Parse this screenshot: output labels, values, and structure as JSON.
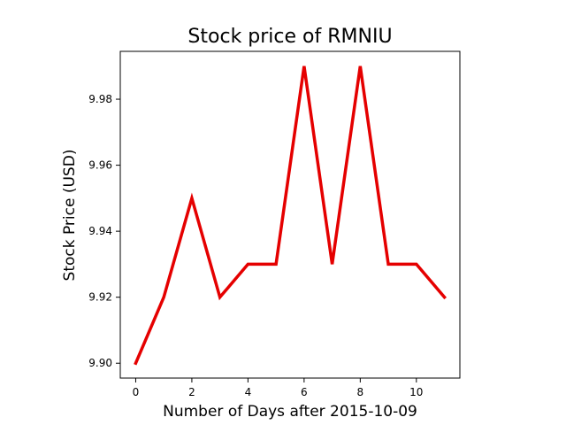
{
  "chart_data": {
    "type": "line",
    "title": "Stock price of RMNIU",
    "xlabel": "Number of Days after 2015-10-09",
    "ylabel": "Stock Price (USD)",
    "x": [
      0,
      1,
      2,
      3,
      4,
      5,
      6,
      7,
      8,
      9,
      10,
      11
    ],
    "series": [
      {
        "values": [
          9.9,
          9.92,
          9.95,
          9.92,
          9.93,
          9.93,
          9.99,
          9.93,
          9.99,
          9.93,
          9.93,
          9.92
        ],
        "color": "#e50000"
      }
    ],
    "xlim": [
      -0.55,
      11.55
    ],
    "ylim": [
      9.8955,
      9.9945
    ],
    "xticks": [
      0,
      2,
      4,
      6,
      8,
      10
    ],
    "xtick_labels": [
      "0",
      "2",
      "4",
      "6",
      "8",
      "10"
    ],
    "yticks": [
      9.9,
      9.92,
      9.94,
      9.96,
      9.98
    ],
    "ytick_labels": [
      "9.90",
      "9.92",
      "9.94",
      "9.96",
      "9.98"
    ],
    "grid": false,
    "legend": false
  }
}
